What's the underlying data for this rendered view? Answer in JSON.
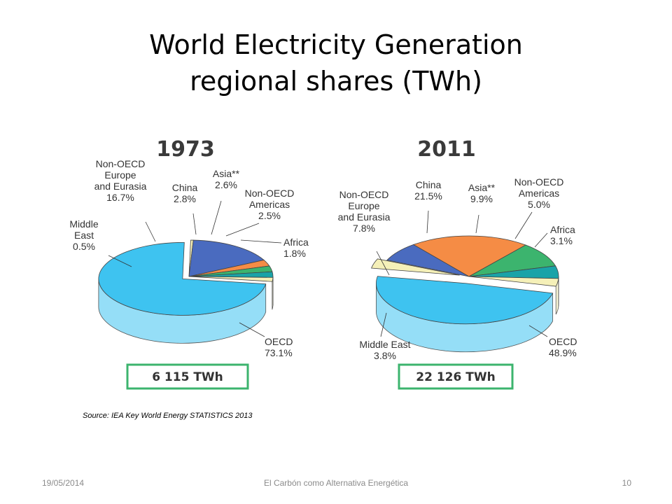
{
  "slide": {
    "title_line1": "World Electricity Generation",
    "title_line2": "regional shares  (TWh)",
    "source": "Source: IEA Key World Energy STATISTICS 2013",
    "footer_date": "19/05/2014",
    "footer_center": "El Carbón como Alternativa Energética",
    "footer_page": "10"
  },
  "colors": {
    "OECD": "#3ec3f0",
    "Middle East": "#f5f0b8",
    "Non-OECD Europe and Eurasia": "#4a6bbf",
    "China": "#f58c45",
    "Asia**": "#3cb46e",
    "Non-OECD Americas": "#1aa3a8",
    "Africa": "#f5f0b8",
    "total_box_border": "#3cb46e"
  },
  "chart_data": [
    {
      "type": "pie",
      "title": "1973",
      "total_label": "6 115 TWh",
      "slices": [
        {
          "name": "OECD",
          "label_lines": [
            "OECD"
          ],
          "value_label": "73.1%",
          "value": 73.1
        },
        {
          "name": "Middle East",
          "label_lines": [
            "Middle",
            "East"
          ],
          "value_label": "0.5%",
          "value": 0.5
        },
        {
          "name": "Non-OECD Europe and Eurasia",
          "label_lines": [
            "Non-OECD",
            "Europe",
            "and Eurasia"
          ],
          "value_label": "16.7%",
          "value": 16.7
        },
        {
          "name": "China",
          "label_lines": [
            "China"
          ],
          "value_label": "2.8%",
          "value": 2.8
        },
        {
          "name": "Asia**",
          "label_lines": [
            "Asia**"
          ],
          "value_label": "2.6%",
          "value": 2.6
        },
        {
          "name": "Non-OECD Americas",
          "label_lines": [
            "Non-OECD",
            "Americas"
          ],
          "value_label": "2.5%",
          "value": 2.5
        },
        {
          "name": "Africa",
          "label_lines": [
            "Africa"
          ],
          "value_label": "1.8%",
          "value": 1.8
        }
      ]
    },
    {
      "type": "pie",
      "title": "2011",
      "total_label": "22 126 TWh",
      "slices": [
        {
          "name": "OECD",
          "label_lines": [
            "OECD"
          ],
          "value_label": "48.9%",
          "value": 48.9
        },
        {
          "name": "Middle East",
          "label_lines": [
            "Middle East"
          ],
          "value_label": "3.8%",
          "value": 3.8
        },
        {
          "name": "Non-OECD Europe and Eurasia",
          "label_lines": [
            "Non-OECD",
            "Europe",
            "and Eurasia"
          ],
          "value_label": "7.8%",
          "value": 7.8
        },
        {
          "name": "China",
          "label_lines": [
            "China"
          ],
          "value_label": "21.5%",
          "value": 21.5
        },
        {
          "name": "Asia**",
          "label_lines": [
            "Asia**"
          ],
          "value_label": "9.9%",
          "value": 9.9
        },
        {
          "name": "Non-OECD Americas",
          "label_lines": [
            "Non-OECD",
            "Americas"
          ],
          "value_label": "5.0%",
          "value": 5.0
        },
        {
          "name": "Africa",
          "label_lines": [
            "Africa"
          ],
          "value_label": "3.1%",
          "value": 3.1
        }
      ]
    }
  ]
}
